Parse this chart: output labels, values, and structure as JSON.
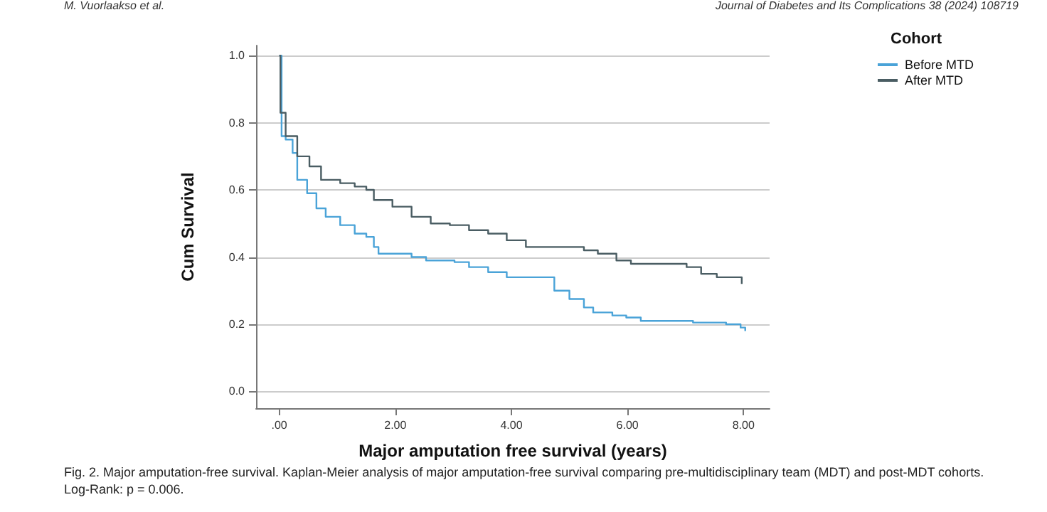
{
  "chart_data": {
    "type": "step",
    "xlabel": "Major amputation free survival (years)",
    "ylabel": "Cum Survival",
    "legend_title": "Cohort",
    "legend": "top right",
    "grid": "y",
    "marker": "none",
    "line_style": "solid",
    "xlim": [
      -0.4,
      8.45
    ],
    "xticks": [
      {
        "value": 0,
        "label": ".00"
      },
      {
        "value": 2,
        "label": "2.00"
      },
      {
        "value": 4,
        "label": "4.00"
      },
      {
        "value": 6,
        "label": "6.00"
      },
      {
        "value": 8,
        "label": "8.00"
      }
    ],
    "ylim": [
      -0.05,
      1.03
    ],
    "yticks": [
      {
        "value": 0,
        "label": "0.0"
      },
      {
        "value": 0.2,
        "label": "0.2"
      },
      {
        "value": 0.4,
        "label": "0.4"
      },
      {
        "value": 0.6,
        "label": "0.6"
      },
      {
        "value": 0.8,
        "label": "0.8"
      },
      {
        "value": 1,
        "label": "1.0"
      }
    ],
    "series": [
      {
        "name": "Before MTD",
        "color": "#4aa3d8",
        "x": [
          0,
          0.04,
          0.11,
          0.23,
          0.31,
          0.48,
          0.64,
          0.8,
          1.05,
          1.3,
          1.5,
          1.63,
          1.71,
          2.28,
          2.53,
          3.02,
          3.27,
          3.6,
          3.92,
          4.5,
          4.74,
          5.0,
          5.25,
          5.41,
          5.74,
          5.98,
          6.23,
          7.13,
          7.7,
          7.95,
          8.03
        ],
        "values": [
          1.0,
          0.76,
          0.75,
          0.71,
          0.63,
          0.59,
          0.545,
          0.52,
          0.495,
          0.47,
          0.46,
          0.43,
          0.41,
          0.4,
          0.39,
          0.385,
          0.37,
          0.355,
          0.34,
          0.34,
          0.3,
          0.275,
          0.25,
          0.235,
          0.226,
          0.22,
          0.21,
          0.205,
          0.2,
          0.19,
          0.18
        ]
      },
      {
        "name": "After MTD",
        "color": "#4a5d63",
        "x": [
          0,
          0.02,
          0.11,
          0.31,
          0.52,
          0.72,
          1.05,
          1.3,
          1.5,
          1.63,
          1.95,
          2.28,
          2.61,
          2.94,
          3.27,
          3.6,
          3.92,
          4.25,
          4.58,
          5.25,
          5.49,
          5.81,
          6.06,
          7.02,
          7.27,
          7.54,
          7.9,
          7.97
        ],
        "values": [
          1.0,
          0.83,
          0.76,
          0.7,
          0.67,
          0.63,
          0.62,
          0.61,
          0.6,
          0.57,
          0.55,
          0.52,
          0.5,
          0.495,
          0.48,
          0.47,
          0.45,
          0.43,
          0.43,
          0.42,
          0.41,
          0.39,
          0.38,
          0.37,
          0.35,
          0.34,
          0.34,
          0.32
        ]
      }
    ],
    "annotations": [
      "M. Vuorlaakso et al.",
      "Journal of Diabetes and Its Complications 38 (2024) 108719",
      "Fig. 2. Major amputation-free survival. Kaplan-Meier analysis of major amputation-free survival comparing pre-multidisciplinary team (MDT) and post-MDT cohorts. Log-Rank: p = 0.006."
    ]
  }
}
